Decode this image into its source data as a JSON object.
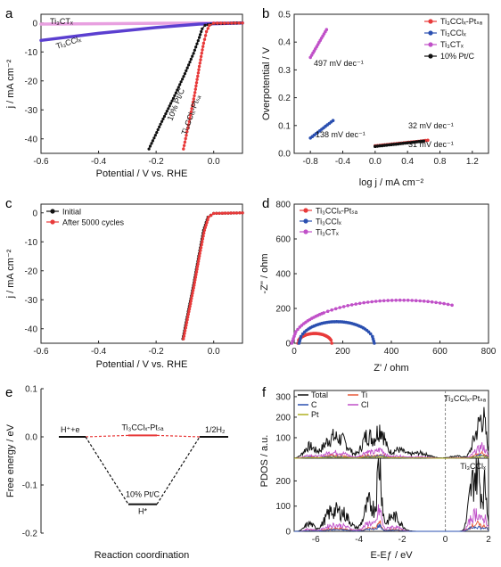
{
  "panels": {
    "a": {
      "label": "a"
    },
    "b": {
      "label": "b"
    },
    "c": {
      "label": "c"
    },
    "d": {
      "label": "d"
    },
    "e": {
      "label": "e"
    },
    "f": {
      "label": "f"
    }
  },
  "chart_data": [
    {
      "id": "a",
      "type": "line",
      "xlabel": "Potential / V vs. RHE",
      "ylabel": "j / mA cm⁻²",
      "xlim": [
        -0.6,
        0.1
      ],
      "ylim": [
        -45,
        3
      ],
      "xticks": [
        "-0.6",
        "-0.4",
        "-0.2",
        "0.0"
      ],
      "yticks": [
        "0",
        "-10",
        "-20",
        "-30",
        "-40"
      ],
      "series": [
        {
          "name": "Ti₃CTₓ",
          "color": "#e8a0e0",
          "x": [
            -0.6,
            -0.4,
            -0.2,
            0.0,
            0.1
          ],
          "y": [
            -0.4,
            -0.25,
            -0.12,
            -0.04,
            0.0
          ]
        },
        {
          "name": "Ti₃CClₓ",
          "color": "#5b3fd0",
          "x": [
            -0.6,
            -0.4,
            -0.2,
            -0.05,
            0.1
          ],
          "y": [
            -6.0,
            -3.6,
            -1.6,
            -0.4,
            0.0
          ]
        },
        {
          "name": "10% Pt/C",
          "color": "#111111",
          "x": [
            -0.225,
            -0.18,
            -0.14,
            -0.1,
            -0.07,
            -0.05,
            -0.04,
            -0.03,
            0.0,
            0.1
          ],
          "y": [
            -43.5,
            -34,
            -26,
            -17.5,
            -10.5,
            -5,
            -2,
            -0.8,
            -0.2,
            0.0
          ]
        },
        {
          "name": "Ti₃CClₓ-Ptₛₐ",
          "color": "#e83a3a",
          "x": [
            -0.105,
            -0.085,
            -0.065,
            -0.05,
            -0.035,
            -0.025,
            -0.015,
            0.0,
            0.1
          ],
          "y": [
            -43.5,
            -34,
            -24,
            -15,
            -7,
            -3,
            -0.8,
            -0.1,
            0.0
          ]
        }
      ],
      "annotations": [
        "Ti₃CTₓ",
        "Ti₃CClₓ",
        "10% Pt/C",
        "Ti₃CClₓ-Ptₛₐ"
      ]
    },
    {
      "id": "b",
      "type": "scatter",
      "xlabel": "log j / mA cm⁻²",
      "ylabel": "Overpotential / V",
      "xlim": [
        -1.0,
        1.4
      ],
      "ylim": [
        0.0,
        0.5
      ],
      "xticks": [
        "-0.8",
        "-0.4",
        "0.0",
        "0.4",
        "0.8",
        "1.2"
      ],
      "yticks": [
        "0.0",
        "0.1",
        "0.2",
        "0.3",
        "0.4",
        "0.5"
      ],
      "series": [
        {
          "name": "Ti₃CClₓ-Ptₛₐ",
          "color": "#e83a3a",
          "slope": "31 mV dec⁻¹",
          "x": [
            0.0,
            0.65
          ],
          "y": [
            0.027,
            0.047
          ]
        },
        {
          "name": "Ti₃CClₓ",
          "color": "#2a4fb0",
          "slope": "138 mV dec⁻¹",
          "x": [
            -0.8,
            -0.52
          ],
          "y": [
            0.055,
            0.118
          ]
        },
        {
          "name": "Ti₃CTₓ",
          "color": "#c050c8",
          "slope": "497 mV dec⁻¹",
          "x": [
            -0.8,
            -0.6
          ],
          "y": [
            0.345,
            0.445
          ]
        },
        {
          "name": "10% Pt/C",
          "color": "#111111",
          "slope": "32 mV dec⁻¹",
          "x": [
            0.0,
            0.6
          ],
          "y": [
            0.025,
            0.044
          ]
        }
      ]
    },
    {
      "id": "c",
      "type": "line",
      "xlabel": "Potential / V vs. RHE",
      "ylabel": "j / mA cm⁻²",
      "xlim": [
        -0.6,
        0.1
      ],
      "ylim": [
        -45,
        3
      ],
      "xticks": [
        "-0.6",
        "-0.4",
        "-0.2",
        "0.0"
      ],
      "yticks": [
        "0",
        "-10",
        "-20",
        "-30",
        "-40"
      ],
      "series": [
        {
          "name": "Initial",
          "color": "#111111",
          "x": [
            -0.107,
            -0.09,
            -0.07,
            -0.05,
            -0.035,
            -0.02,
            0.0,
            0.1
          ],
          "y": [
            -43.5,
            -35,
            -25,
            -14,
            -6,
            -1.5,
            -0.2,
            0.0
          ]
        },
        {
          "name": "After 5000 cycles",
          "color": "#e83a3a",
          "x": [
            -0.105,
            -0.088,
            -0.068,
            -0.048,
            -0.032,
            -0.018,
            0.0,
            0.1
          ],
          "y": [
            -43.5,
            -35,
            -25,
            -14,
            -6,
            -1.5,
            -0.2,
            0.0
          ]
        }
      ]
    },
    {
      "id": "d",
      "type": "scatter",
      "xlabel": "Z' / ohm",
      "ylabel": "-Z'' / ohm",
      "xlim": [
        0,
        800
      ],
      "ylim": [
        0,
        800
      ],
      "xticks": [
        "0",
        "200",
        "400",
        "600",
        "800"
      ],
      "yticks": [
        "0",
        "200",
        "400",
        "600",
        "800"
      ],
      "series": [
        {
          "name": "Ti₃CClₓ-Ptₛₐ",
          "color": "#e83a3a",
          "center": 85,
          "radius": 70,
          "xmax": 155
        },
        {
          "name": "Ti₃CClₓ",
          "color": "#2a4fb0",
          "center": 175,
          "radius": 155,
          "xmax": 330
        },
        {
          "name": "Ti₃CTₓ",
          "color": "#c050c8",
          "center": 440,
          "radius": 450,
          "xmax": 650
        }
      ]
    },
    {
      "id": "e",
      "type": "line",
      "xlabel": "Reaction coordination",
      "ylabel": "Free energy / eV",
      "ylim": [
        -0.2,
        0.1
      ],
      "yticks": [
        "0.1",
        "0.0",
        "-0.1",
        "-0.2"
      ],
      "levels": [
        {
          "label": "H⁺+e",
          "value": 0.0
        },
        {
          "label": "H*",
          "value": -0.14
        },
        {
          "label": "1/2H₂",
          "value": 0.0
        }
      ],
      "series": [
        {
          "name": "Ti₃CClₓ-Ptₛₐ",
          "color": "#e83a3a",
          "y": [
            0.0,
            0.003,
            0.0
          ]
        },
        {
          "name": "10% Pt/C",
          "color": "#111111",
          "y": [
            0.0,
            -0.14,
            0.0
          ]
        }
      ]
    },
    {
      "id": "f",
      "type": "line",
      "xlabel": "E-Eƒ / eV",
      "ylabel": "PDOS / a.u.",
      "xlim": [
        -7,
        2
      ],
      "xticks": [
        "-6",
        "-4",
        "-2",
        "0",
        "2"
      ],
      "yticks_top": [
        "0",
        "100",
        "200",
        "300"
      ],
      "yticks_bottom": [
        "0",
        "100",
        "200"
      ],
      "legend": [
        {
          "name": "Total",
          "color": "#111111"
        },
        {
          "name": "Ti",
          "color": "#e85a3a"
        },
        {
          "name": "C",
          "color": "#2a4fb0"
        },
        {
          "name": "Cl",
          "color": "#c050c8"
        },
        {
          "name": "Pt",
          "color": "#b0b020"
        }
      ],
      "subplots": [
        "Ti₃CClₓ-Ptₛₐ",
        "Ti₃CClₓ"
      ]
    }
  ]
}
